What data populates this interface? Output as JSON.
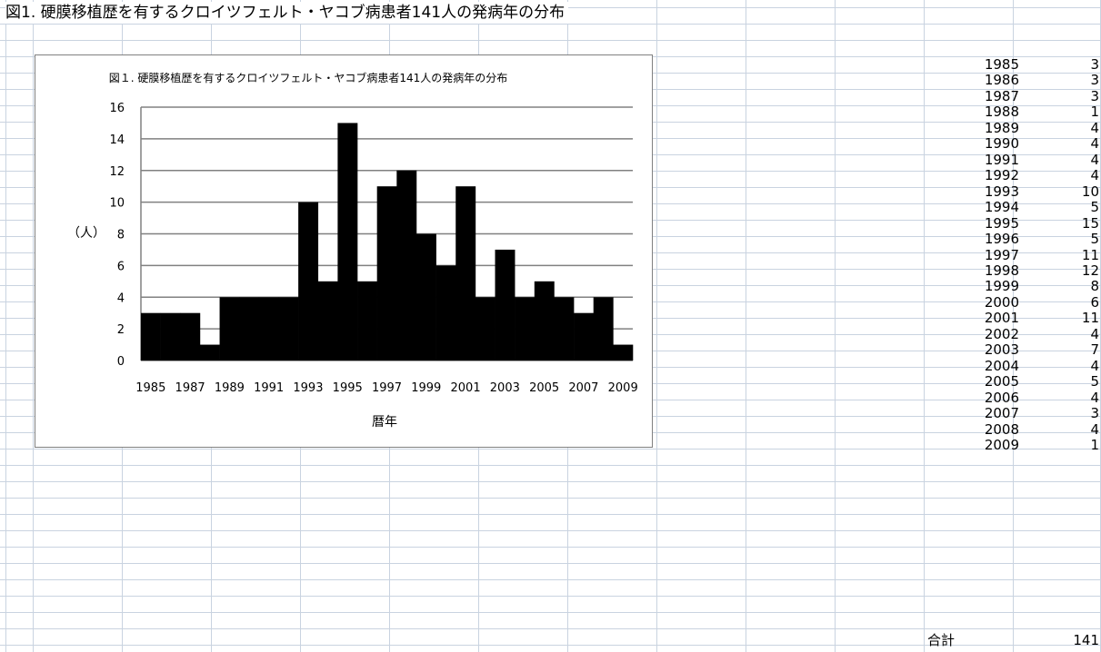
{
  "sheet": {
    "title": "図1. 硬膜移植歴を有するクロイツフェルト・ヤコブ病患者141人の発病年の分布",
    "total_label": "合計",
    "total_value": "141"
  },
  "table": [
    {
      "year": "1985",
      "value": "3"
    },
    {
      "year": "1986",
      "value": "3"
    },
    {
      "year": "1987",
      "value": "3"
    },
    {
      "year": "1988",
      "value": "1"
    },
    {
      "year": "1989",
      "value": "4"
    },
    {
      "year": "1990",
      "value": "4"
    },
    {
      "year": "1991",
      "value": "4"
    },
    {
      "year": "1992",
      "value": "4"
    },
    {
      "year": "1993",
      "value": "10"
    },
    {
      "year": "1994",
      "value": "5"
    },
    {
      "year": "1995",
      "value": "15"
    },
    {
      "year": "1996",
      "value": "5"
    },
    {
      "year": "1997",
      "value": "11"
    },
    {
      "year": "1998",
      "value": "12"
    },
    {
      "year": "1999",
      "value": "8"
    },
    {
      "year": "2000",
      "value": "6"
    },
    {
      "year": "2001",
      "value": "11"
    },
    {
      "year": "2002",
      "value": "4"
    },
    {
      "year": "2003",
      "value": "7"
    },
    {
      "year": "2004",
      "value": "4"
    },
    {
      "year": "2005",
      "value": "5"
    },
    {
      "year": "2006",
      "value": "4"
    },
    {
      "year": "2007",
      "value": "3"
    },
    {
      "year": "2008",
      "value": "4"
    },
    {
      "year": "2009",
      "value": "1"
    }
  ],
  "chart_data": {
    "type": "bar",
    "title": "図１. 硬膜移植歴を有するクロイツフェルト・ヤコブ病患者141人の発病年の分布",
    "xlabel": "暦年",
    "ylabel": "（人）",
    "categories": [
      "1985",
      "1986",
      "1987",
      "1988",
      "1989",
      "1990",
      "1991",
      "1992",
      "1993",
      "1994",
      "1995",
      "1996",
      "1997",
      "1998",
      "1999",
      "2000",
      "2001",
      "2002",
      "2003",
      "2004",
      "2005",
      "2006",
      "2007",
      "2008",
      "2009"
    ],
    "values": [
      3,
      3,
      3,
      1,
      4,
      4,
      4,
      4,
      10,
      5,
      15,
      5,
      11,
      12,
      8,
      6,
      11,
      4,
      7,
      4,
      5,
      4,
      3,
      4,
      1
    ],
    "x_tick_labels": [
      "1985",
      "1987",
      "1989",
      "1991",
      "1993",
      "1995",
      "1997",
      "1999",
      "2001",
      "2003",
      "2005",
      "2007",
      "2009"
    ],
    "y_ticks": [
      0,
      2,
      4,
      6,
      8,
      10,
      12,
      14,
      16
    ],
    "ylim": [
      0,
      16
    ],
    "grid": true,
    "legend": "none",
    "bar_color": "#000000",
    "grid_color": "#808080"
  }
}
